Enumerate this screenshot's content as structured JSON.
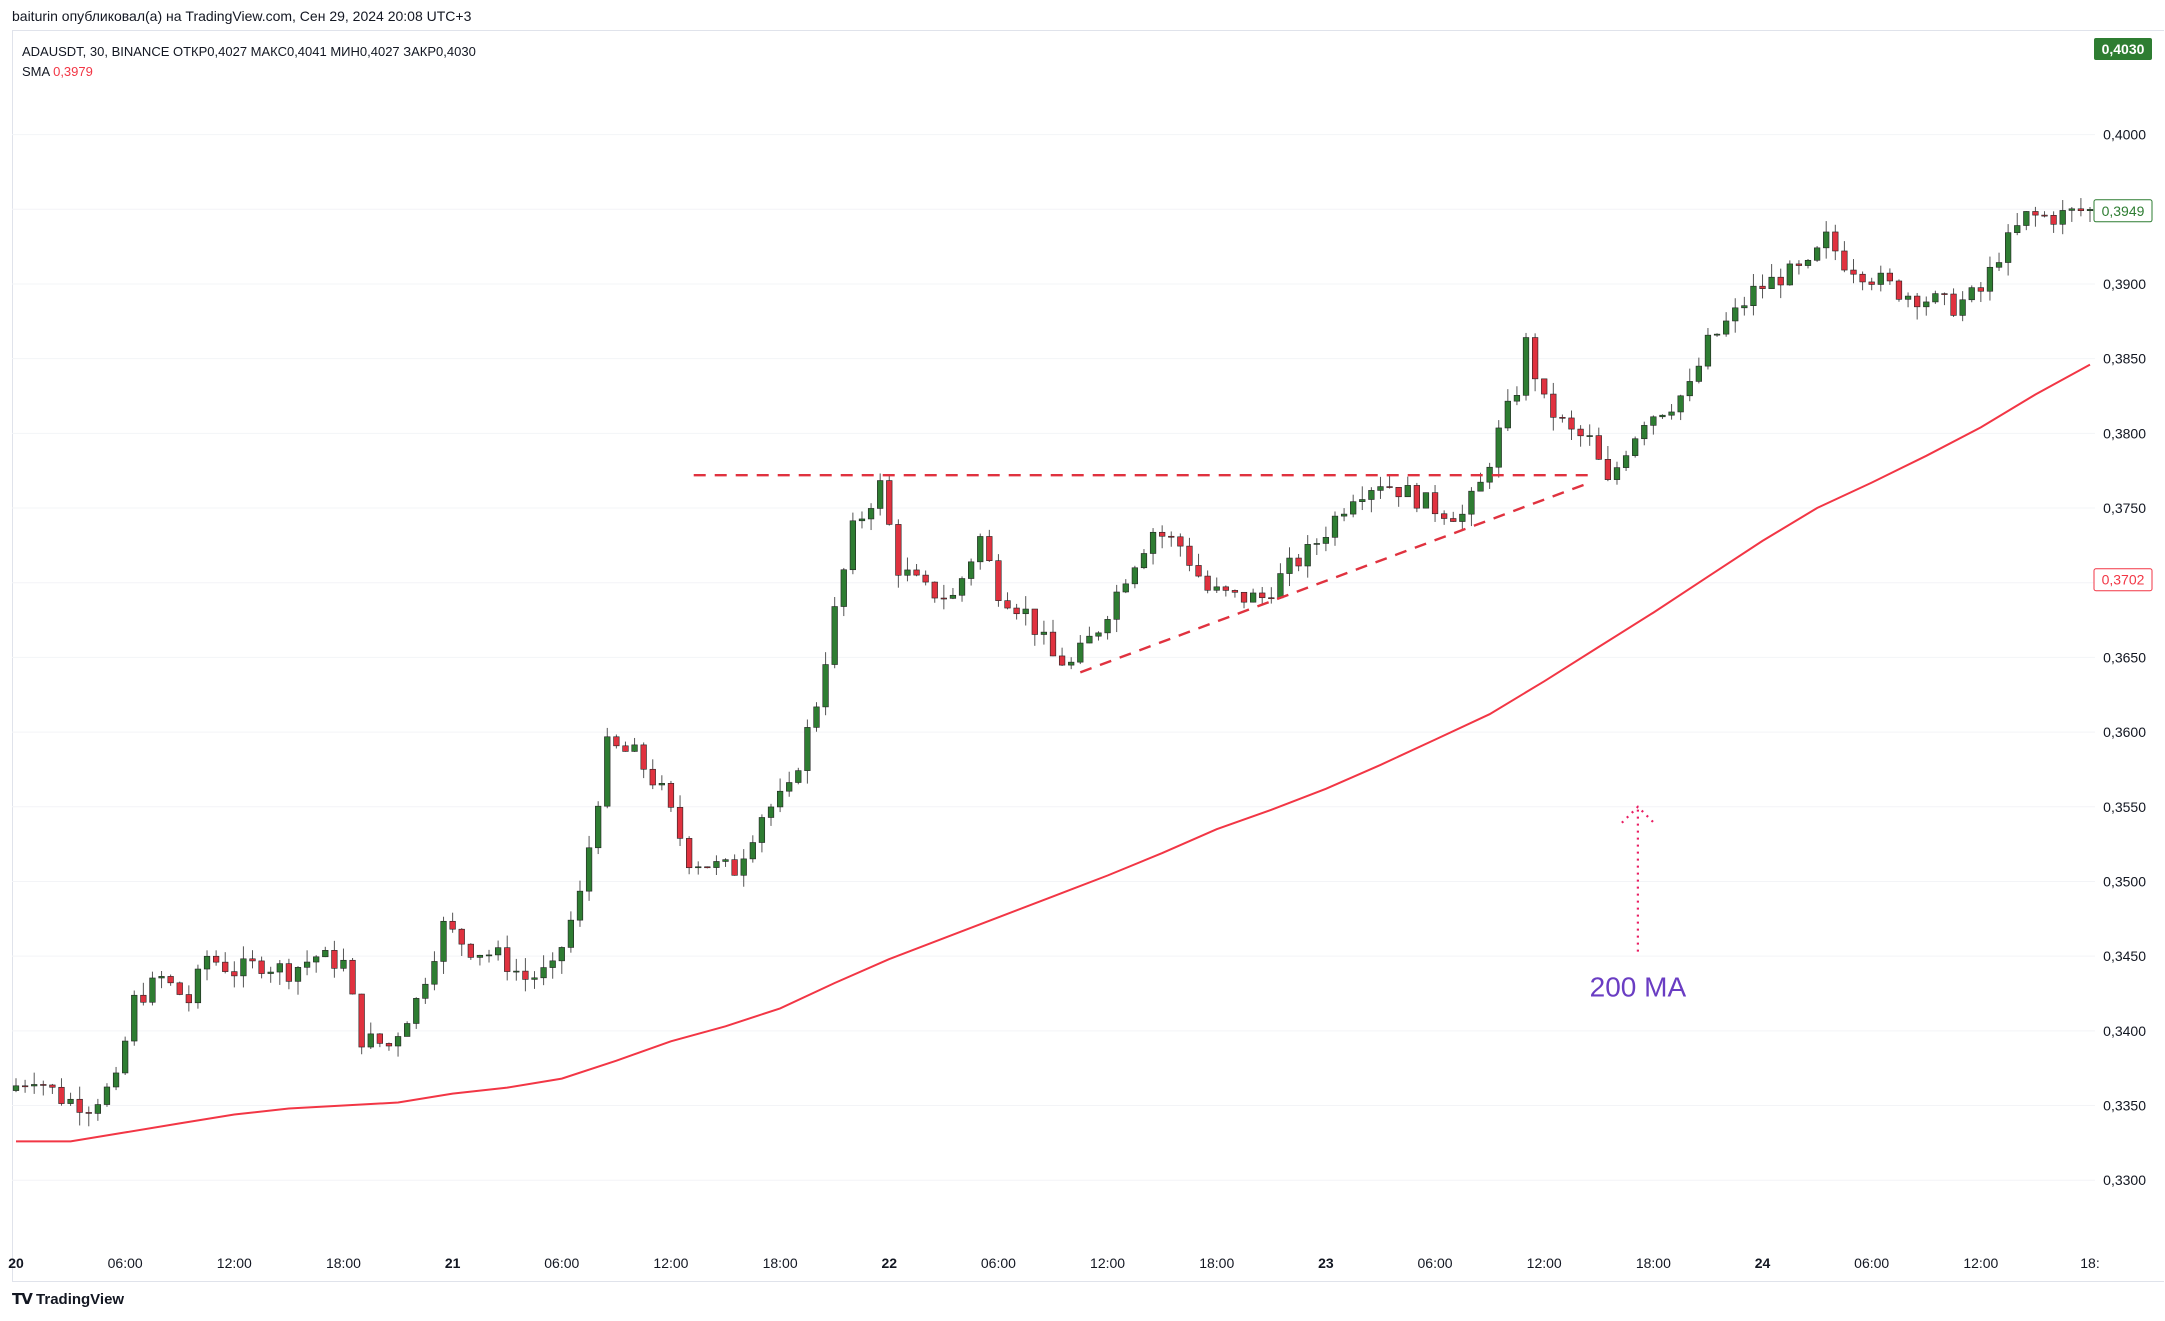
{
  "header": {
    "published": "baiturin опубликовал(а) на TradingView.com, Сен 29, 2024 20:08 UTC+3"
  },
  "legend": {
    "symbol_line": "ADAUSDT, 30, BINANCE  ОТКР0,4027  МАКС0,4041  МИН0,4027  ЗАКР0,4030",
    "sma_label": "SMA",
    "sma_value": "0,3979"
  },
  "footer": {
    "brand": "TradingView"
  },
  "annotation": {
    "ma_label": "200 MA"
  },
  "colors": {
    "up": "#26a69a",
    "up_fill": "#2e7d32",
    "down": "#e0323f",
    "ma": "#f23645",
    "annotation_text": "#6a3dc3",
    "arrow": "#e91e63",
    "price_tag": "#2e7d32"
  },
  "chart_data": {
    "type": "candlestick",
    "symbol": "ADAUSDT",
    "interval": "30",
    "exchange": "BINANCE",
    "ylim": [
      0.327,
      0.406
    ],
    "y_ticks": [
      "0,4000",
      "0,3950",
      "0,3900",
      "0,3850",
      "0,3800",
      "0,3750",
      "0,3700",
      "0,3650",
      "0,3600",
      "0,3550",
      "0,3500",
      "0,3450",
      "0,3400",
      "0,3350",
      "0,3300"
    ],
    "x_ticks": [
      {
        "label": "20",
        "t": 0,
        "bold": true
      },
      {
        "label": "06:00",
        "t": 12
      },
      {
        "label": "12:00",
        "t": 24
      },
      {
        "label": "18:00",
        "t": 36
      },
      {
        "label": "21",
        "t": 48,
        "bold": true
      },
      {
        "label": "06:00",
        "t": 60
      },
      {
        "label": "12:00",
        "t": 72
      },
      {
        "label": "18:00",
        "t": 84
      },
      {
        "label": "22",
        "t": 96,
        "bold": true
      },
      {
        "label": "06:00",
        "t": 108
      },
      {
        "label": "12:00",
        "t": 120
      },
      {
        "label": "18:00",
        "t": 132
      },
      {
        "label": "23",
        "t": 144,
        "bold": true
      },
      {
        "label": "06:00",
        "t": 156
      },
      {
        "label": "12:00",
        "t": 168
      },
      {
        "label": "18:00",
        "t": 180
      },
      {
        "label": "24",
        "t": 192,
        "bold": true
      },
      {
        "label": "06:00",
        "t": 204
      },
      {
        "label": "12:00",
        "t": 216
      },
      {
        "label": "18:",
        "t": 228
      }
    ],
    "last_price": "0,4030",
    "price_tags": [
      {
        "value": 0.3949,
        "label": "0,3949",
        "style": "green"
      },
      {
        "value": 0.3702,
        "label": "0,3702",
        "style": "red"
      }
    ],
    "anchor_points": [
      [
        0,
        0.336
      ],
      [
        3,
        0.337
      ],
      [
        6,
        0.3355
      ],
      [
        9,
        0.335
      ],
      [
        12,
        0.3365
      ],
      [
        14,
        0.342
      ],
      [
        17,
        0.3435
      ],
      [
        20,
        0.342
      ],
      [
        22,
        0.345
      ],
      [
        25,
        0.344
      ],
      [
        28,
        0.3445
      ],
      [
        31,
        0.344
      ],
      [
        34,
        0.345
      ],
      [
        37,
        0.3445
      ],
      [
        39,
        0.3395
      ],
      [
        42,
        0.339
      ],
      [
        45,
        0.342
      ],
      [
        48,
        0.347
      ],
      [
        51,
        0.3455
      ],
      [
        54,
        0.345
      ],
      [
        57,
        0.3435
      ],
      [
        60,
        0.344
      ],
      [
        63,
        0.349
      ],
      [
        66,
        0.359
      ],
      [
        69,
        0.3585
      ],
      [
        72,
        0.356
      ],
      [
        75,
        0.3515
      ],
      [
        78,
        0.351
      ],
      [
        80,
        0.3508
      ],
      [
        83,
        0.3545
      ],
      [
        86,
        0.356
      ],
      [
        89,
        0.362
      ],
      [
        91,
        0.368
      ],
      [
        93,
        0.3735
      ],
      [
        96,
        0.3765
      ],
      [
        98,
        0.371
      ],
      [
        101,
        0.3695
      ],
      [
        104,
        0.369
      ],
      [
        107,
        0.373
      ],
      [
        109,
        0.3695
      ],
      [
        112,
        0.368
      ],
      [
        115,
        0.365
      ],
      [
        117,
        0.3645
      ],
      [
        120,
        0.367
      ],
      [
        123,
        0.3705
      ],
      [
        126,
        0.3735
      ],
      [
        129,
        0.3725
      ],
      [
        132,
        0.3695
      ],
      [
        135,
        0.369
      ],
      [
        138,
        0.369
      ],
      [
        141,
        0.371
      ],
      [
        143,
        0.372
      ],
      [
        145,
        0.3735
      ],
      [
        148,
        0.376
      ],
      [
        151,
        0.3768
      ],
      [
        154,
        0.376
      ],
      [
        157,
        0.375
      ],
      [
        160,
        0.3745
      ],
      [
        162,
        0.3765
      ],
      [
        164,
        0.38
      ],
      [
        166,
        0.383
      ],
      [
        167,
        0.386
      ],
      [
        169,
        0.382
      ],
      [
        172,
        0.38
      ],
      [
        174,
        0.3795
      ],
      [
        176,
        0.3765
      ],
      [
        178,
        0.379
      ],
      [
        180,
        0.381
      ],
      [
        183,
        0.382
      ],
      [
        185,
        0.383
      ],
      [
        187,
        0.386
      ],
      [
        190,
        0.388
      ],
      [
        192,
        0.3895
      ],
      [
        195,
        0.3905
      ],
      [
        198,
        0.391
      ],
      [
        200,
        0.393
      ],
      [
        202,
        0.3915
      ],
      [
        205,
        0.3905
      ],
      [
        208,
        0.3895
      ],
      [
        211,
        0.389
      ],
      [
        214,
        0.3885
      ],
      [
        217,
        0.3895
      ],
      [
        219,
        0.392
      ],
      [
        222,
        0.3945
      ],
      [
        225,
        0.3945
      ],
      [
        228,
        0.3949
      ]
    ],
    "ma_points": [
      [
        0,
        0.3326
      ],
      [
        6,
        0.3326
      ],
      [
        12,
        0.3332
      ],
      [
        18,
        0.3338
      ],
      [
        24,
        0.3344
      ],
      [
        30,
        0.3348
      ],
      [
        36,
        0.335
      ],
      [
        42,
        0.3352
      ],
      [
        48,
        0.3358
      ],
      [
        54,
        0.3362
      ],
      [
        60,
        0.3368
      ],
      [
        66,
        0.338
      ],
      [
        72,
        0.3393
      ],
      [
        78,
        0.3403
      ],
      [
        84,
        0.3415
      ],
      [
        90,
        0.3432
      ],
      [
        96,
        0.3448
      ],
      [
        102,
        0.3462
      ],
      [
        108,
        0.3476
      ],
      [
        114,
        0.349
      ],
      [
        120,
        0.3504
      ],
      [
        126,
        0.3519
      ],
      [
        132,
        0.3535
      ],
      [
        138,
        0.3548
      ],
      [
        144,
        0.3562
      ],
      [
        150,
        0.3578
      ],
      [
        156,
        0.3595
      ],
      [
        162,
        0.3612
      ],
      [
        168,
        0.3634
      ],
      [
        174,
        0.3657
      ],
      [
        180,
        0.368
      ],
      [
        186,
        0.3704
      ],
      [
        192,
        0.3728
      ],
      [
        198,
        0.375
      ],
      [
        204,
        0.3767
      ],
      [
        210,
        0.3785
      ],
      [
        216,
        0.3804
      ],
      [
        222,
        0.3826
      ],
      [
        228,
        0.3846
      ]
    ],
    "drawings": {
      "resistance": {
        "from": [
          80,
          0.3772
        ],
        "to": [
          173,
          0.3772
        ]
      },
      "ascending_support": {
        "from": [
          117,
          0.364
        ],
        "to": [
          173,
          0.3767
        ]
      },
      "arrow": {
        "t": 175,
        "from": 0.3453,
        "to": 0.355
      }
    }
  }
}
